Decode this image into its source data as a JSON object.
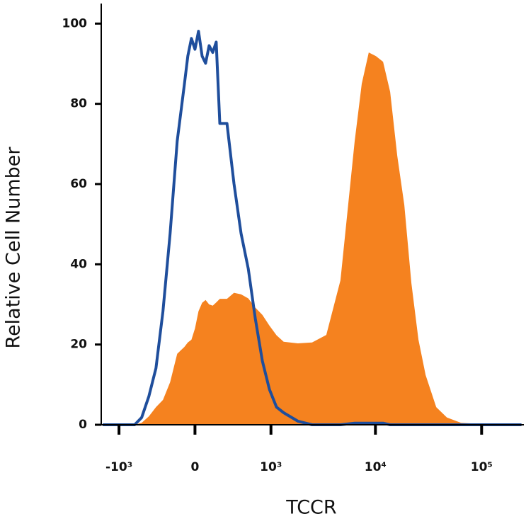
{
  "chart_data": {
    "type": "histogram-overlay",
    "xlabel": "TCCR",
    "ylabel": "Relative Cell Number",
    "xscale": "asinh",
    "xlim": [
      -1500,
      250000
    ],
    "ylim": [
      0,
      105
    ],
    "xticks": [
      {
        "value": -1000,
        "label": "-10³"
      },
      0,
      {
        "value": 1000,
        "label": "10³"
      },
      {
        "value": 10000,
        "label": "10⁴"
      },
      {
        "value": 100000,
        "label": "10⁵"
      }
    ],
    "yticks": [
      0,
      20,
      40,
      60,
      80,
      100
    ],
    "x": [
      -1451,
      -686,
      -572,
      -470,
      -380,
      -300,
      -226,
      -158,
      -93,
      -62,
      -31,
      0,
      31,
      62,
      93,
      125,
      158,
      191,
      226,
      300,
      380,
      470,
      572,
      686,
      816,
      965,
      1137,
      1339,
      1839,
      2516,
      3436,
      4680,
      6372,
      7428,
      8660,
      10100,
      11800,
      13760,
      16040,
      18720,
      21800,
      25440,
      29680,
      37400,
      47120,
      64000,
      138000,
      237200
    ],
    "series": [
      {
        "color": "#f5821f",
        "style": "filled",
        "values": [
          0,
          0,
          0.5,
          2.1,
          4.4,
          6.2,
          10.6,
          17.7,
          19.4,
          20.5,
          21.2,
          24,
          28.3,
          30.4,
          31.1,
          30,
          29.7,
          30.5,
          31.4,
          31.4,
          32.9,
          32.5,
          31.5,
          29.2,
          27.4,
          24.7,
          22.3,
          20.7,
          20.3,
          20.5,
          22.4,
          36,
          70.7,
          85,
          92.8,
          91.9,
          90.5,
          83,
          67.1,
          54.8,
          35.3,
          21.2,
          12.4,
          4.4,
          1.8,
          0.5,
          0,
          0
        ]
      },
      {
        "color": "#1f4e9c",
        "style": "line",
        "values": [
          0,
          0,
          1.8,
          7.1,
          14.1,
          28.3,
          47.7,
          70.7,
          84.8,
          91.9,
          96.3,
          93.6,
          98.1,
          91.9,
          90.1,
          94.5,
          92.8,
          95.4,
          75.1,
          75.1,
          60.1,
          47.7,
          38.9,
          26.5,
          15.9,
          8.8,
          4.4,
          3,
          0.9,
          0,
          0,
          0,
          0.4,
          0.4,
          0.4,
          0.4,
          0.4,
          0,
          0,
          0,
          0,
          0,
          0,
          0,
          0,
          0,
          0,
          0
        ]
      }
    ]
  }
}
